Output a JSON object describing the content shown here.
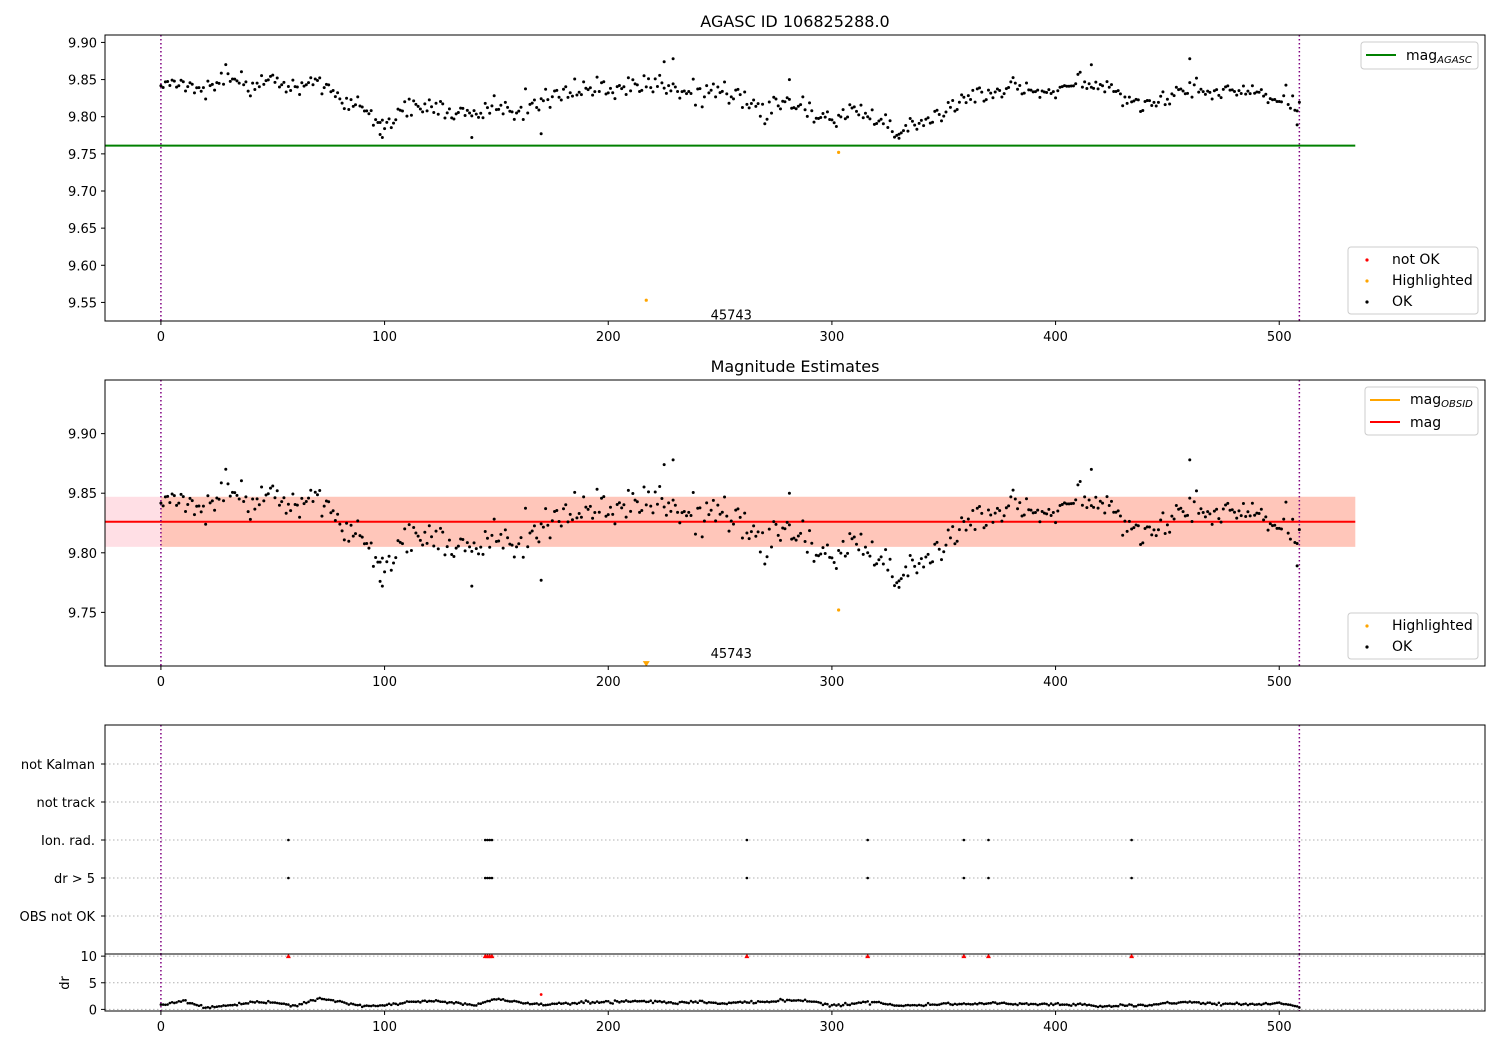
{
  "chart_data": [
    {
      "type": "scatter",
      "title": "AGASC ID 106825288.0",
      "xlim": [
        -25,
        592
      ],
      "ylim": [
        9.525,
        9.91
      ],
      "xticks": [
        0,
        100,
        200,
        300,
        400,
        500
      ],
      "yticks": [
        9.55,
        9.6,
        9.65,
        9.7,
        9.75,
        9.8,
        9.85,
        9.9
      ],
      "ytick_labels": [
        "9.55",
        "9.60",
        "9.65",
        "9.70",
        "9.75",
        "9.80",
        "9.85",
        "9.90"
      ],
      "grid": false,
      "legend_upper": {
        "placement": "upper right",
        "entries": [
          {
            "label": "mag",
            "subscript": "AGASC",
            "color": "#008000"
          }
        ]
      },
      "legend_lower": {
        "placement": "lower right",
        "entries": [
          {
            "label": "not OK",
            "color": "#ff0000"
          },
          {
            "label": "Highlighted",
            "color": "#ffa500"
          },
          {
            "label": "OK",
            "color": "#000000"
          }
        ]
      },
      "mag_agasc": {
        "value": 9.761,
        "x_range": [
          -25,
          534
        ],
        "color": "#008000"
      },
      "obsid_boundaries": [
        0,
        509
      ],
      "obsid_label": {
        "text": "45743",
        "x": 255,
        "y": 9.534
      },
      "ok_series": {
        "name": "OK",
        "color": "#000000",
        "n_points": 510,
        "control_x": [
          0,
          10,
          20,
          30,
          40,
          50,
          60,
          70,
          80,
          90,
          100,
          110,
          120,
          130,
          140,
          150,
          160,
          170,
          180,
          190,
          200,
          210,
          220,
          230,
          240,
          250,
          260,
          270,
          280,
          290,
          300,
          310,
          320,
          330,
          340,
          350,
          360,
          370,
          380,
          390,
          400,
          410,
          420,
          430,
          440,
          450,
          460,
          470,
          480,
          490,
          500,
          509
        ],
        "control_y": [
          9.845,
          9.845,
          9.835,
          9.855,
          9.84,
          9.855,
          9.835,
          9.845,
          9.82,
          9.815,
          9.79,
          9.815,
          9.81,
          9.805,
          9.8,
          9.815,
          9.805,
          9.82,
          9.835,
          9.84,
          9.835,
          9.84,
          9.85,
          9.835,
          9.83,
          9.835,
          9.825,
          9.81,
          9.82,
          9.81,
          9.795,
          9.81,
          9.8,
          9.78,
          9.795,
          9.805,
          9.825,
          9.83,
          9.84,
          9.835,
          9.835,
          9.845,
          9.845,
          9.825,
          9.815,
          9.825,
          9.84,
          9.83,
          9.835,
          9.835,
          9.825,
          9.815
        ],
        "noise": 0.012,
        "extra_points": [
          {
            "x": 139,
            "y": 9.772
          },
          {
            "x": 170,
            "y": 9.777
          },
          {
            "x": 225,
            "y": 9.874
          },
          {
            "x": 229,
            "y": 9.878
          },
          {
            "x": 98,
            "y": 9.776
          },
          {
            "x": 99,
            "y": 9.772
          },
          {
            "x": 330,
            "y": 9.771
          },
          {
            "x": 460,
            "y": 9.878
          },
          {
            "x": 416,
            "y": 9.87
          },
          {
            "x": 281,
            "y": 9.85
          },
          {
            "x": 508,
            "y": 9.789
          }
        ]
      },
      "highlighted_points": [
        {
          "x": 217,
          "y": 9.553
        },
        {
          "x": 303,
          "y": 9.752
        }
      ]
    },
    {
      "type": "scatter",
      "title": "Magnitude Estimates",
      "xlim": [
        -25,
        592
      ],
      "ylim": [
        9.705,
        9.945
      ],
      "xticks": [
        0,
        100,
        200,
        300,
        400,
        500
      ],
      "yticks": [
        9.75,
        9.8,
        9.85,
        9.9
      ],
      "ytick_labels": [
        "9.75",
        "9.80",
        "9.85",
        "9.90"
      ],
      "grid": false,
      "legend_upper": {
        "placement": "upper right",
        "entries": [
          {
            "label": "mag",
            "subscript": "OBSID",
            "color": "#ffa500"
          },
          {
            "label": "mag",
            "subscript": "",
            "color": "#ff0000"
          }
        ]
      },
      "legend_lower": {
        "placement": "lower right",
        "entries": [
          {
            "label": "Highlighted",
            "color": "#ffa500"
          },
          {
            "label": "OK",
            "color": "#000000"
          }
        ]
      },
      "mag_line": {
        "value": 9.826,
        "x_range": [
          -25,
          534
        ],
        "color": "#ff0000"
      },
      "mag_band": {
        "low": 9.805,
        "high": 9.847,
        "x_range": [
          -25,
          534
        ],
        "color": "#ffc0cb"
      },
      "obsid_band": {
        "low": 9.805,
        "high": 9.847,
        "x_range": [
          0,
          534
        ],
        "color": "#ffa07a"
      },
      "obsid_boundaries": [
        0,
        509
      ],
      "obsid_label": {
        "text": "45743",
        "x": 255,
        "y": 9.71
      },
      "highlighted_points": [
        {
          "x": 303,
          "y": 9.752
        }
      ],
      "offscale_marker": {
        "x": 217,
        "y": 9.707,
        "color": "#ffa500"
      }
    },
    {
      "type": "scatter",
      "title": "",
      "xlim": [
        -25,
        592
      ],
      "xticks": [
        0,
        100,
        200,
        300,
        400,
        500
      ],
      "flag_rows": [
        "not Kalman",
        "not track",
        "Ion. rad.",
        "dr > 5",
        "OBS not OK"
      ],
      "flags": {
        "Ion. rad.": [
          57,
          145,
          146,
          147,
          148,
          262,
          316,
          359,
          370,
          434
        ],
        "dr > 5": [
          57,
          145,
          146,
          147,
          148,
          262,
          316,
          359,
          370,
          434
        ]
      },
      "obsid_boundaries": [
        0,
        509
      ]
    },
    {
      "type": "scatter",
      "title": "",
      "ylabel": "dr",
      "xlim": [
        -25,
        592
      ],
      "ylim": [
        -0.3,
        10.4
      ],
      "xticks": [
        0,
        100,
        200,
        300,
        400,
        500
      ],
      "yticks": [
        0,
        5,
        10
      ],
      "grid": true,
      "dr_clip": 10,
      "dr_control_x": [
        0,
        10,
        20,
        25,
        30,
        40,
        50,
        60,
        70,
        75,
        80,
        90,
        100,
        110,
        120,
        130,
        140,
        150,
        160,
        170,
        180,
        190,
        200,
        210,
        220,
        230,
        240,
        250,
        260,
        270,
        280,
        290,
        300,
        310,
        320,
        330,
        340,
        350,
        360,
        370,
        380,
        390,
        400,
        410,
        420,
        430,
        440,
        450,
        460,
        470,
        480,
        490,
        500,
        509
      ],
      "dr_control_y": [
        0.9,
        1.6,
        0.4,
        0.5,
        0.7,
        1.2,
        1.4,
        0.7,
        1.9,
        1.8,
        1.4,
        0.6,
        0.7,
        1.4,
        1.6,
        1.3,
        0.8,
        1.9,
        1.4,
        0.9,
        1.1,
        1.3,
        1.4,
        1.6,
        1.5,
        1.2,
        1.5,
        1.1,
        1.3,
        1.5,
        1.7,
        1.7,
        0.7,
        1.1,
        1.4,
        0.7,
        0.8,
        1.1,
        1.0,
        1.2,
        1.1,
        1.0,
        1.0,
        0.9,
        0.5,
        0.8,
        0.6,
        1.2,
        1.4,
        1.0,
        1.1,
        0.9,
        1.3,
        0.4
      ],
      "not_ok_points": [
        {
          "x": 57,
          "y": 10
        },
        {
          "x": 145,
          "y": 10
        },
        {
          "x": 146,
          "y": 10
        },
        {
          "x": 147,
          "y": 10
        },
        {
          "x": 148,
          "y": 10
        },
        {
          "x": 262,
          "y": 10
        },
        {
          "x": 316,
          "y": 10
        },
        {
          "x": 359,
          "y": 10
        },
        {
          "x": 370,
          "y": 10
        },
        {
          "x": 434,
          "y": 10
        },
        {
          "x": 170,
          "y": 2.8
        }
      ],
      "obsid_boundaries": [
        0,
        509
      ]
    }
  ]
}
